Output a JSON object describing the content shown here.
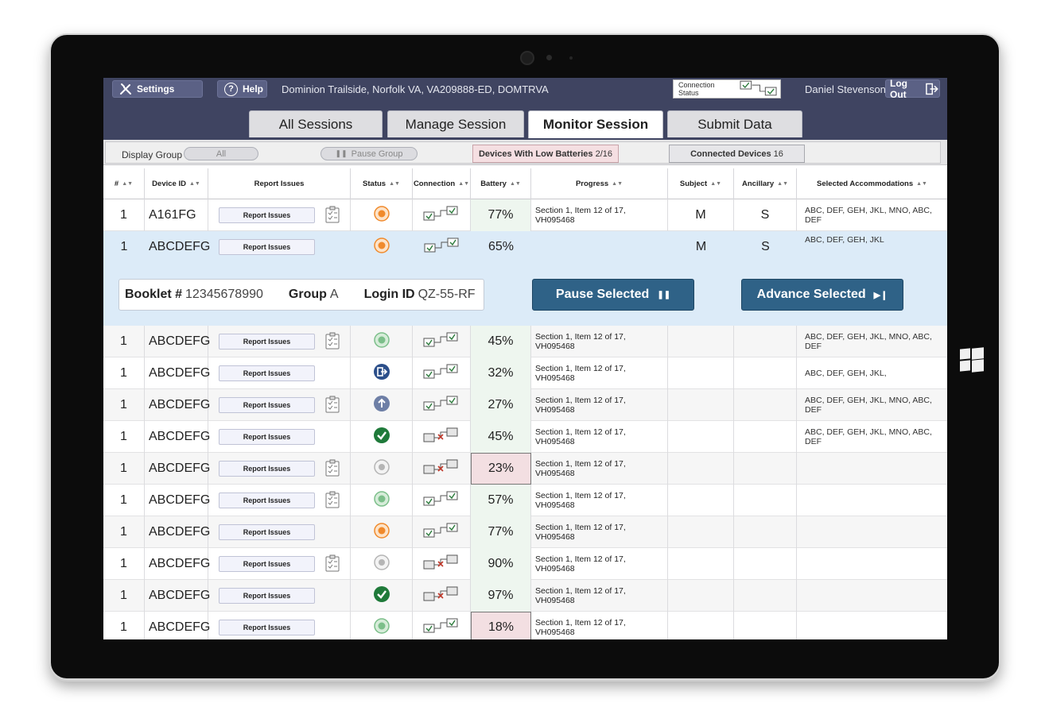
{
  "topbar": {
    "settings_label": "Settings",
    "help_label": "Help",
    "location": "Dominion Trailside, Norfolk VA, VA209888-ED, DOMTRVA",
    "connection_status_label": "Connection Status",
    "user_name": "Daniel Stevenson",
    "logout_label": "Log Out"
  },
  "tabs": [
    "All Sessions",
    "Manage Session",
    "Monitor Session",
    "Submit Data"
  ],
  "active_tab": "Monitor Session",
  "filters": {
    "display_group_label": "Display Group",
    "all_label": "All",
    "pause_group_label": "Pause Group",
    "low_batteries_label": "Devices With Low Batteries",
    "low_batteries_count": "2/16",
    "connected_label": "Connected Devices",
    "connected_count": "16"
  },
  "table": {
    "headers": [
      "#",
      "Device ID",
      "Report Issues",
      "Status",
      "Connection",
      "Battery",
      "Progress",
      "Subject",
      "Ancillary",
      "Selected Accommodations"
    ],
    "report_label": "Report Issues",
    "rows": [
      {
        "num": "1",
        "device": "A161FG",
        "clip": true,
        "status": "orange",
        "conn": "ok",
        "battery": "77%",
        "low": false,
        "progress": "Section 1, Item 12 of 17, VH095468",
        "subject": "M",
        "ancillary": "S",
        "acc": "ABC, DEF, GEH, JKL, MNO, ABC, DEF"
      },
      {
        "num": "1",
        "device": "ABCDEFG",
        "clip": true,
        "status": "green",
        "conn": "ok",
        "battery": "45%",
        "low": false,
        "progress": "Section 1, Item 12 of 17, VH095468",
        "subject": "",
        "ancillary": "",
        "acc": "ABC, DEF, GEH, JKL, MNO, ABC, DEF"
      },
      {
        "num": "1",
        "device": "ABCDEFG",
        "clip": false,
        "status": "exit",
        "conn": "ok",
        "battery": "32%",
        "low": false,
        "progress": "Section 1, Item 12 of 17, VH095468",
        "subject": "",
        "ancillary": "",
        "acc": "ABC, DEF, GEH, JKL,"
      },
      {
        "num": "1",
        "device": "ABCDEFG",
        "clip": true,
        "status": "upload",
        "conn": "ok",
        "battery": "27%",
        "low": false,
        "progress": "Section 1, Item 12 of 17, VH095468",
        "subject": "",
        "ancillary": "",
        "acc": "ABC, DEF, GEH, JKL, MNO, ABC, DEF"
      },
      {
        "num": "1",
        "device": "ABCDEFG",
        "clip": false,
        "status": "check",
        "conn": "bad",
        "battery": "45%",
        "low": false,
        "progress": "Section 1, Item 12 of 17, VH095468",
        "subject": "",
        "ancillary": "",
        "acc": "ABC, DEF, GEH, JKL, MNO, ABC, DEF"
      },
      {
        "num": "1",
        "device": "ABCDEFG",
        "clip": true,
        "status": "grey",
        "conn": "bad",
        "battery": "23%",
        "low": true,
        "progress": "Section 1, Item 12 of 17, VH095468",
        "subject": "",
        "ancillary": "",
        "acc": ""
      },
      {
        "num": "1",
        "device": "ABCDEFG",
        "clip": true,
        "status": "green",
        "conn": "ok",
        "battery": "57%",
        "low": false,
        "progress": "Section 1, Item 12 of 17, VH095468",
        "subject": "",
        "ancillary": "",
        "acc": ""
      },
      {
        "num": "1",
        "device": "ABCDEFG",
        "clip": false,
        "status": "orange",
        "conn": "ok",
        "battery": "77%",
        "low": false,
        "progress": "Section 1, Item 12 of 17, VH095468",
        "subject": "",
        "ancillary": "",
        "acc": ""
      },
      {
        "num": "1",
        "device": "ABCDEFG",
        "clip": true,
        "status": "grey",
        "conn": "bad",
        "battery": "90%",
        "low": false,
        "progress": "Section 1, Item 12 of 17, VH095468",
        "subject": "",
        "ancillary": "",
        "acc": ""
      },
      {
        "num": "1",
        "device": "ABCDEFG",
        "clip": false,
        "status": "check",
        "conn": "bad",
        "battery": "97%",
        "low": false,
        "progress": "Section 1, Item 12 of 17, VH095468",
        "subject": "",
        "ancillary": "",
        "acc": ""
      },
      {
        "num": "1",
        "device": "ABCDEFG",
        "clip": false,
        "status": "green",
        "conn": "ok",
        "battery": "18%",
        "low": true,
        "progress": "Section 1, Item 12 of 17, VH095468",
        "subject": "",
        "ancillary": "",
        "acc": ""
      }
    ],
    "expanded": {
      "num": "1",
      "device": "ABCDEFG",
      "status": "orange",
      "conn": "ok",
      "battery": "65%",
      "subject": "M",
      "ancillary": "S",
      "acc": "ABC, DEF, GEH, JKL",
      "booklet_label": "Booklet #",
      "booklet_value": "12345678990",
      "group_label": "Group",
      "group_value": "A",
      "login_label": "Login ID",
      "login_value": "QZ-55-RF",
      "pause_label": "Pause Selected",
      "advance_label": "Advance Selected"
    }
  },
  "colors": {
    "header_bg": "#3f4461",
    "button_blue": "#2f6287",
    "status_orange": "#f08a2c",
    "status_green": "#7cbf8a",
    "status_check": "#1f7a3a",
    "status_blue": "#2c4f8a",
    "expanded_bg": "#dcebf8"
  }
}
